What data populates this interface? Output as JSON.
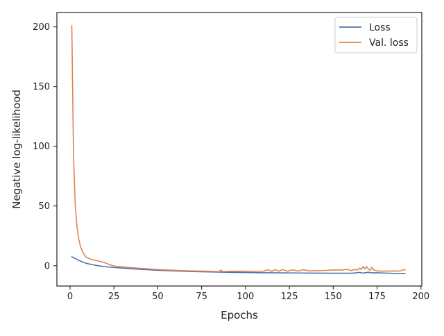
{
  "chart_data": {
    "type": "line",
    "title": "",
    "xlabel": "Epochs",
    "ylabel": "Negative log-likelihood",
    "xlim": [
      -7.5,
      200.5
    ],
    "ylim": [
      -17,
      212
    ],
    "xticks": [
      0,
      25,
      50,
      75,
      100,
      125,
      150,
      175,
      200
    ],
    "yticks": [
      0,
      50,
      100,
      150,
      200
    ],
    "grid": false,
    "legend_position": "top-right",
    "series": [
      {
        "name": "Loss",
        "color": "#4c72b0",
        "x": [
          1,
          3,
          5,
          7,
          9,
          11,
          13,
          15,
          20,
          25,
          30,
          40,
          50,
          60,
          70,
          80,
          90,
          100,
          110,
          120,
          130,
          140,
          150,
          160,
          163,
          165,
          167,
          170,
          172,
          175,
          180,
          185,
          191
        ],
        "y": [
          7.5,
          6.0,
          4.5,
          3.2,
          2.2,
          1.4,
          0.8,
          0.2,
          -0.8,
          -1.5,
          -2.0,
          -3.0,
          -3.8,
          -4.4,
          -4.9,
          -5.2,
          -5.5,
          -5.7,
          -5.9,
          -6.0,
          -6.1,
          -6.2,
          -6.3,
          -6.3,
          -6.0,
          -5.6,
          -6.2,
          -5.5,
          -6.0,
          -5.9,
          -6.2,
          -6.4,
          -6.6
        ]
      },
      {
        "name": "Val. loss",
        "color": "#dd8452",
        "x": [
          1,
          2,
          3,
          4,
          5,
          6,
          7,
          8,
          9,
          10,
          12,
          14,
          16,
          18,
          20,
          22,
          24,
          26,
          30,
          35,
          40,
          50,
          60,
          70,
          80,
          85,
          86,
          87,
          90,
          95,
          100,
          105,
          110,
          113,
          115,
          117,
          119,
          121,
          124,
          127,
          130,
          133,
          136,
          140,
          145,
          150,
          155,
          158,
          160,
          162,
          164,
          165,
          166,
          167,
          168,
          169,
          170,
          171,
          172,
          173,
          175,
          178,
          180,
          185,
          188,
          190,
          191
        ],
        "y": [
          201,
          90,
          50,
          32,
          22,
          16,
          12,
          9.5,
          7.5,
          6.5,
          5.3,
          4.6,
          4.0,
          3.3,
          2.4,
          1.2,
          0.2,
          -0.5,
          -1.0,
          -1.6,
          -2.2,
          -3.2,
          -3.9,
          -4.4,
          -4.7,
          -4.9,
          -3.6,
          -4.9,
          -4.7,
          -4.6,
          -4.6,
          -4.7,
          -4.6,
          -3.4,
          -4.8,
          -3.3,
          -4.6,
          -3.2,
          -4.5,
          -3.4,
          -4.5,
          -3.3,
          -4.3,
          -4.2,
          -4.0,
          -3.5,
          -3.6,
          -3.0,
          -4.1,
          -3.3,
          -3.5,
          -2.0,
          -3.0,
          -0.8,
          -2.6,
          -0.7,
          -2.7,
          -3.9,
          -1.4,
          -3.5,
          -4.3,
          -4.6,
          -4.5,
          -4.4,
          -4.5,
          -3.3,
          -3.5
        ]
      }
    ]
  }
}
